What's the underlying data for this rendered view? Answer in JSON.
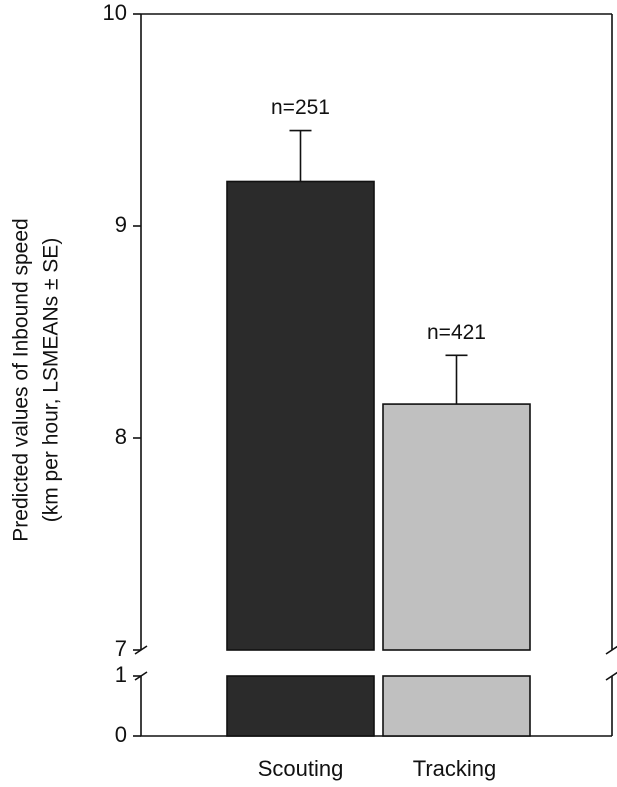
{
  "chart_data": {
    "type": "bar",
    "ylabel": [
      "Predicted values of Inbound speed",
      "(km per hour, LSMEANs ± SE)"
    ],
    "categories": [
      "Scouting",
      "Tracking"
    ],
    "values": [
      9.21,
      8.16
    ],
    "errors": [
      0.24,
      0.23
    ],
    "annotations": [
      "n=251",
      "n=421"
    ],
    "colors": [
      "#2b2b2b",
      "#c0c0c0"
    ],
    "ylim": [
      7,
      10
    ],
    "yticks": [
      7,
      8,
      9,
      10
    ],
    "ylim_lower": [
      0,
      1
    ],
    "yticks_lower": [
      0,
      1
    ]
  }
}
